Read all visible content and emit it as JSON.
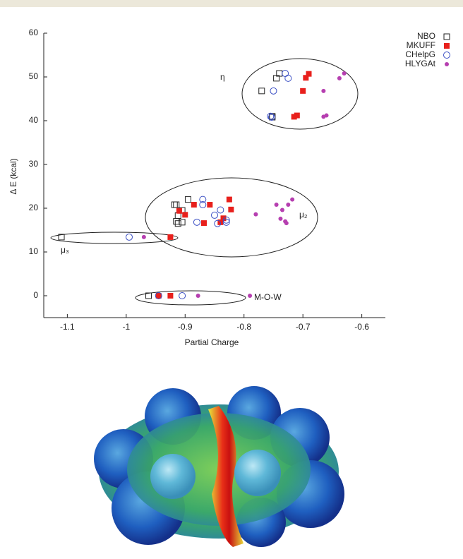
{
  "chart_data": {
    "type": "scatter",
    "x_label": "Partial Charge",
    "y_label": "Δ E (kcal)",
    "xlim": [
      -1.14,
      -0.56
    ],
    "ylim": [
      -5,
      60
    ],
    "xticks": [
      -1.1,
      -1,
      -0.9,
      -0.8,
      -0.7,
      -0.6
    ],
    "yticks": [
      0,
      10,
      20,
      30,
      40,
      50,
      60
    ],
    "legend": "top-right",
    "annotations": [
      "η",
      "μ₂",
      "μ₃",
      "M-O-W"
    ],
    "series": [
      {
        "name": "NBO",
        "color": "#222222",
        "marker": "open-square",
        "x": [
          -0.74,
          -0.745,
          -0.77,
          -0.752,
          -0.752,
          -0.895,
          -0.915,
          -0.918,
          -0.905,
          -0.912,
          -0.915,
          -0.912,
          -0.905,
          -1.11,
          -0.962
        ],
        "values": [
          50.8,
          49.7,
          46.8,
          41,
          40.8,
          22,
          20.8,
          20.8,
          19.5,
          18.3,
          17,
          16.5,
          16.8,
          13.4,
          0
        ]
      },
      {
        "name": "MKUFF",
        "color": "#e8201c",
        "marker": "filled-square",
        "x": [
          -0.69,
          -0.695,
          -0.7,
          -0.71,
          -0.715,
          -0.885,
          -0.858,
          -0.825,
          -0.822,
          -0.835,
          -0.84,
          -0.868,
          -0.9,
          -0.91,
          -0.925,
          -0.945,
          -0.925
        ],
        "values": [
          50.7,
          49.8,
          46.8,
          41.2,
          40.9,
          20.8,
          20.8,
          22,
          19.7,
          17.7,
          16.8,
          16.6,
          18.5,
          19.4,
          13.4,
          0,
          0
        ]
      },
      {
        "name": "CHelpG",
        "color": "#3b4fc4",
        "marker": "open-circle",
        "x": [
          -0.73,
          -0.725,
          -0.75,
          -0.755,
          -0.753,
          -0.87,
          -0.87,
          -0.84,
          -0.85,
          -0.83,
          -0.83,
          -0.88,
          -0.845,
          -0.995,
          -0.945,
          -0.905
        ],
        "values": [
          50.8,
          49.7,
          46.8,
          41,
          40.8,
          22,
          20.8,
          19.6,
          18.4,
          17.3,
          16.8,
          16.8,
          16.5,
          13.4,
          0,
          0
        ]
      },
      {
        "name": "HLYGAt",
        "color": "#b63fb0",
        "marker": "filled-circle",
        "x": [
          -0.63,
          -0.638,
          -0.665,
          -0.66,
          -0.665,
          -0.78,
          -0.745,
          -0.735,
          -0.725,
          -0.718,
          -0.738,
          -0.73,
          -0.728,
          -0.97,
          -0.878,
          -0.79
        ],
        "values": [
          50.8,
          49.7,
          46.8,
          41.2,
          40.9,
          18.6,
          20.8,
          19.6,
          20.8,
          22,
          17.6,
          17,
          16.6,
          13.4,
          0,
          0
        ]
      }
    ]
  }
}
